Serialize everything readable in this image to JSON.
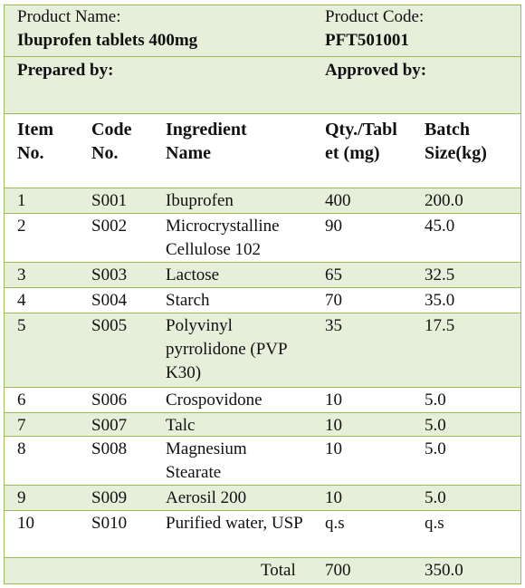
{
  "product": {
    "name_label": "Product Name:",
    "name": "Ibuprofen tablets 400mg",
    "code_label": "Product Code:",
    "code": "PFT501001",
    "prepared_label": "Prepared by:",
    "approved_label": "Approved by:"
  },
  "table": {
    "headers": {
      "item": "Item No.",
      "code": "Code No.",
      "ingredient": "Ingredient Name",
      "qty": "Qty./Tablet (mg)",
      "batch": "Batch Size(kg)"
    },
    "rows": [
      {
        "item": "1",
        "code": "S001",
        "ingredient": "Ibuprofen",
        "qty": "400",
        "batch": "200.0"
      },
      {
        "item": "2",
        "code": "S002",
        "ingredient": "Microcrystalline Cellulose 102",
        "qty": "90",
        "batch": "45.0"
      },
      {
        "item": "3",
        "code": "S003",
        "ingredient": "Lactose",
        "qty": "65",
        "batch": "32.5"
      },
      {
        "item": "4",
        "code": "S004",
        "ingredient": "Starch",
        "qty": "70",
        "batch": "35.0"
      },
      {
        "item": "5",
        "code": "S005",
        "ingredient": "Polyvinyl pyrrolidone (PVP K30)",
        "qty": "35",
        "batch": "17.5"
      },
      {
        "item": "6",
        "code": "S006",
        "ingredient": "Crospovidone",
        "qty": "10",
        "batch": "5.0"
      },
      {
        "item": "7",
        "code": "S007",
        "ingredient": "Talc",
        "qty": "10",
        "batch": "5.0"
      },
      {
        "item": "8",
        "code": "S008",
        "ingredient": "Magnesium Stearate",
        "qty": "10",
        "batch": "5.0"
      },
      {
        "item": "9",
        "code": "S009",
        "ingredient": "Aerosil 200",
        "qty": "10",
        "batch": "5.0"
      },
      {
        "item": "10",
        "code": "S010",
        "ingredient": "Purified water, USP",
        "qty": "q.s",
        "batch": "q.s"
      }
    ],
    "total": {
      "label": "Total",
      "qty": "700",
      "batch": "350.0"
    }
  }
}
